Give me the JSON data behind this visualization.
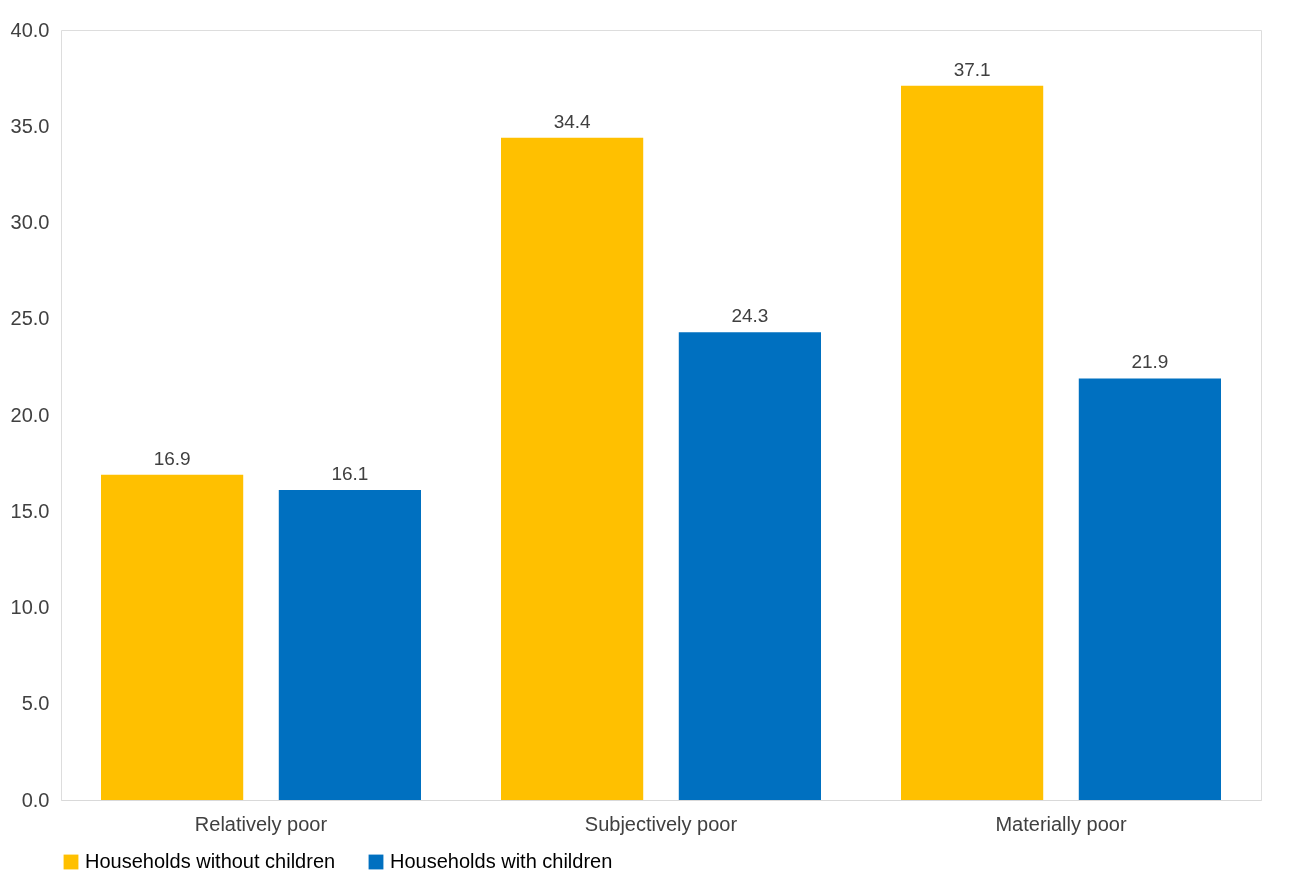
{
  "chart_data": {
    "type": "bar",
    "categories": [
      "Relatively poor",
      "Subjectively poor",
      "Materially poor"
    ],
    "series": [
      {
        "name": "Households without children",
        "color": "#ffc000",
        "values": [
          16.9,
          34.4,
          37.1
        ]
      },
      {
        "name": "Households with children",
        "color": "#0070c0",
        "values": [
          16.1,
          24.3,
          21.9
        ]
      }
    ],
    "ylim": [
      0,
      40
    ],
    "yticks": [
      {
        "value": 0,
        "label": "0.0"
      },
      {
        "value": 5,
        "label": "5.0"
      },
      {
        "value": 10,
        "label": "10.0"
      },
      {
        "value": 15,
        "label": "15.0"
      },
      {
        "value": 20,
        "label": "20.0"
      },
      {
        "value": 25,
        "label": "25.0"
      },
      {
        "value": 30,
        "label": "30.0"
      },
      {
        "value": 35,
        "label": "35.0"
      },
      {
        "value": 40,
        "label": "40.0"
      }
    ],
    "data_labels": true,
    "grid": false,
    "legend": "bottom"
  }
}
